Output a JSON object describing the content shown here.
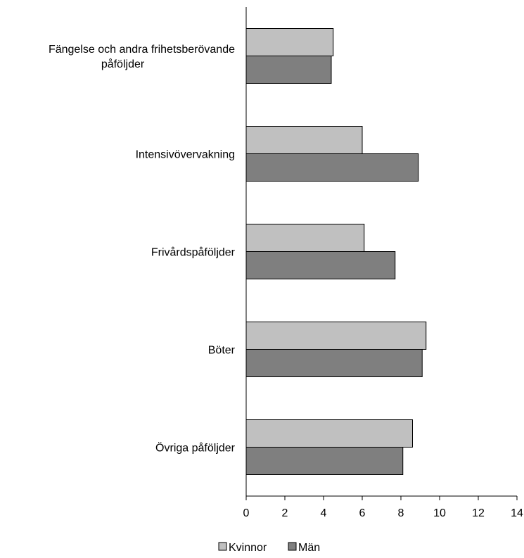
{
  "chart_data": {
    "type": "bar",
    "orientation": "horizontal",
    "categories": [
      [
        "Fängelse och andra frihetsberövande",
        "påföljder"
      ],
      [
        "Intensivövervakning"
      ],
      [
        "Frivårdspåföljder"
      ],
      [
        "Böter"
      ],
      [
        "Övriga påföljder"
      ]
    ],
    "series": [
      {
        "name": "Kvinnor",
        "color": "#c0c0c0",
        "values": [
          4.5,
          6.0,
          6.1,
          9.3,
          8.6
        ]
      },
      {
        "name": "Män",
        "color": "#7f7f7f",
        "values": [
          4.4,
          8.9,
          7.7,
          9.1,
          8.1
        ]
      }
    ],
    "xlim": [
      0,
      14
    ],
    "xticks": [
      "0",
      "2",
      "4",
      "6",
      "8",
      "10",
      "12",
      "14"
    ],
    "grid": false,
    "legend_position": "bottom"
  }
}
